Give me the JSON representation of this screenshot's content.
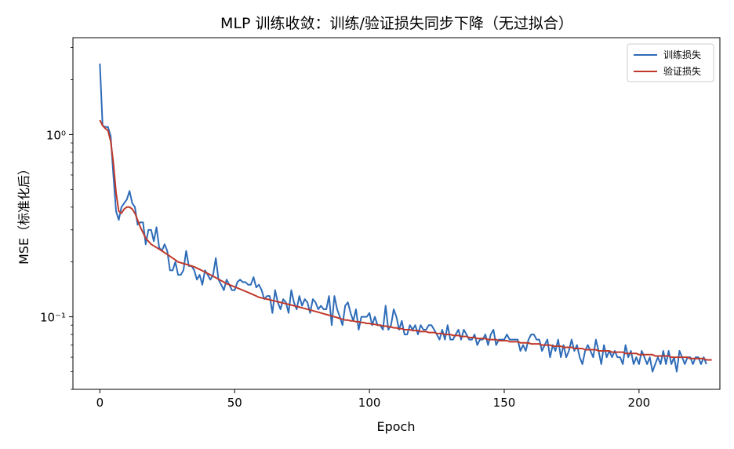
{
  "chart_data": {
    "type": "line",
    "title": "MLP 训练收敛：训练/验证损失同步下降（无过拟合）",
    "xlabel": "Epoch",
    "ylabel": "MSE（标准化后）",
    "xlim": [
      -10,
      230
    ],
    "ylim": [
      0.04,
      3.4
    ],
    "yscale": "log",
    "grid": false,
    "legend_position": "top-right",
    "x_ticks": [
      0,
      50,
      100,
      150,
      200
    ],
    "x_tick_labels": [
      "0",
      "50",
      "100",
      "150",
      "200"
    ],
    "y_ticks": [
      0.1,
      1
    ],
    "y_tick_labels": [
      "10⁻¹",
      "10⁰"
    ],
    "series": [
      {
        "name": "训练损失",
        "color": "#2e6cb8",
        "x_start": 0,
        "x_step": 1,
        "values": [
          2.45,
          1.12,
          1.1,
          1.1,
          0.98,
          0.6,
          0.38,
          0.34,
          0.4,
          0.42,
          0.44,
          0.49,
          0.42,
          0.4,
          0.32,
          0.33,
          0.33,
          0.25,
          0.3,
          0.3,
          0.26,
          0.31,
          0.24,
          0.23,
          0.25,
          0.23,
          0.18,
          0.18,
          0.2,
          0.17,
          0.17,
          0.18,
          0.23,
          0.19,
          0.19,
          0.18,
          0.16,
          0.17,
          0.15,
          0.18,
          0.17,
          0.16,
          0.17,
          0.21,
          0.16,
          0.15,
          0.14,
          0.16,
          0.15,
          0.14,
          0.14,
          0.155,
          0.16,
          0.155,
          0.155,
          0.15,
          0.15,
          0.165,
          0.145,
          0.15,
          0.14,
          0.125,
          0.13,
          0.13,
          0.105,
          0.14,
          0.12,
          0.11,
          0.125,
          0.12,
          0.105,
          0.14,
          0.12,
          0.11,
          0.13,
          0.115,
          0.125,
          0.12,
          0.105,
          0.125,
          0.12,
          0.11,
          0.115,
          0.11,
          0.11,
          0.13,
          0.09,
          0.13,
          0.11,
          0.1,
          0.09,
          0.115,
          0.12,
          0.105,
          0.095,
          0.11,
          0.085,
          0.1,
          0.1,
          0.1,
          0.105,
          0.09,
          0.1,
          0.09,
          0.09,
          0.085,
          0.115,
          0.085,
          0.09,
          0.11,
          0.1,
          0.085,
          0.095,
          0.08,
          0.08,
          0.09,
          0.085,
          0.09,
          0.08,
          0.09,
          0.085,
          0.085,
          0.09,
          0.09,
          0.085,
          0.08,
          0.075,
          0.085,
          0.075,
          0.09,
          0.075,
          0.075,
          0.08,
          0.085,
          0.075,
          0.085,
          0.08,
          0.075,
          0.075,
          0.08,
          0.07,
          0.075,
          0.075,
          0.08,
          0.07,
          0.08,
          0.085,
          0.07,
          0.075,
          0.075,
          0.075,
          0.08,
          0.075,
          0.075,
          0.075,
          0.075,
          0.065,
          0.07,
          0.065,
          0.075,
          0.08,
          0.08,
          0.075,
          0.075,
          0.065,
          0.07,
          0.075,
          0.06,
          0.07,
          0.065,
          0.075,
          0.06,
          0.07,
          0.06,
          0.065,
          0.075,
          0.065,
          0.07,
          0.06,
          0.055,
          0.065,
          0.07,
          0.065,
          0.06,
          0.075,
          0.065,
          0.055,
          0.07,
          0.06,
          0.065,
          0.06,
          0.065,
          0.06,
          0.06,
          0.055,
          0.07,
          0.06,
          0.065,
          0.055,
          0.06,
          0.055,
          0.065,
          0.06,
          0.055,
          0.06,
          0.05,
          0.055,
          0.06,
          0.055,
          0.065,
          0.055,
          0.065,
          0.055,
          0.06,
          0.05,
          0.065,
          0.06,
          0.055,
          0.06,
          0.06,
          0.055,
          0.06,
          0.06,
          0.055,
          0.06,
          0.055
        ]
      },
      {
        "name": "验证损失",
        "color": "#c0392b",
        "x_start": 0,
        "x_step": 1,
        "values": [
          1.2,
          1.12,
          1.08,
          1.05,
          0.92,
          0.7,
          0.48,
          0.38,
          0.37,
          0.39,
          0.4,
          0.4,
          0.39,
          0.37,
          0.34,
          0.31,
          0.29,
          0.27,
          0.26,
          0.25,
          0.245,
          0.24,
          0.235,
          0.23,
          0.225,
          0.22,
          0.215,
          0.21,
          0.205,
          0.2,
          0.198,
          0.196,
          0.194,
          0.192,
          0.19,
          0.188,
          0.185,
          0.182,
          0.179,
          0.176,
          0.173,
          0.17,
          0.167,
          0.164,
          0.161,
          0.158,
          0.155,
          0.152,
          0.15,
          0.148,
          0.146,
          0.144,
          0.142,
          0.14,
          0.138,
          0.136,
          0.134,
          0.132,
          0.13,
          0.128,
          0.127,
          0.126,
          0.125,
          0.124,
          0.123,
          0.122,
          0.121,
          0.12,
          0.119,
          0.118,
          0.117,
          0.116,
          0.115,
          0.114,
          0.113,
          0.112,
          0.111,
          0.11,
          0.109,
          0.108,
          0.107,
          0.106,
          0.105,
          0.104,
          0.103,
          0.102,
          0.101,
          0.1,
          0.099,
          0.098,
          0.097,
          0.096,
          0.096,
          0.095,
          0.095,
          0.094,
          0.094,
          0.093,
          0.093,
          0.092,
          0.092,
          0.091,
          0.091,
          0.09,
          0.09,
          0.089,
          0.089,
          0.088,
          0.088,
          0.087,
          0.087,
          0.086,
          0.086,
          0.085,
          0.085,
          0.085,
          0.084,
          0.084,
          0.084,
          0.083,
          0.083,
          0.083,
          0.082,
          0.082,
          0.082,
          0.081,
          0.081,
          0.081,
          0.08,
          0.08,
          0.08,
          0.079,
          0.079,
          0.079,
          0.078,
          0.078,
          0.078,
          0.077,
          0.077,
          0.077,
          0.076,
          0.076,
          0.076,
          0.076,
          0.075,
          0.075,
          0.075,
          0.075,
          0.074,
          0.074,
          0.074,
          0.074,
          0.073,
          0.073,
          0.073,
          0.073,
          0.072,
          0.072,
          0.072,
          0.072,
          0.071,
          0.071,
          0.071,
          0.071,
          0.07,
          0.07,
          0.07,
          0.07,
          0.069,
          0.069,
          0.069,
          0.069,
          0.068,
          0.068,
          0.068,
          0.068,
          0.067,
          0.067,
          0.067,
          0.067,
          0.066,
          0.066,
          0.066,
          0.066,
          0.066,
          0.065,
          0.065,
          0.065,
          0.065,
          0.065,
          0.064,
          0.064,
          0.064,
          0.064,
          0.064,
          0.063,
          0.063,
          0.063,
          0.063,
          0.063,
          0.062,
          0.062,
          0.062,
          0.062,
          0.062,
          0.062,
          0.061,
          0.061,
          0.061,
          0.061,
          0.061,
          0.061,
          0.06,
          0.06,
          0.06,
          0.06,
          0.06,
          0.06,
          0.06,
          0.059,
          0.059,
          0.059,
          0.059,
          0.059,
          0.059,
          0.058,
          0.058,
          0.058
        ]
      }
    ]
  }
}
